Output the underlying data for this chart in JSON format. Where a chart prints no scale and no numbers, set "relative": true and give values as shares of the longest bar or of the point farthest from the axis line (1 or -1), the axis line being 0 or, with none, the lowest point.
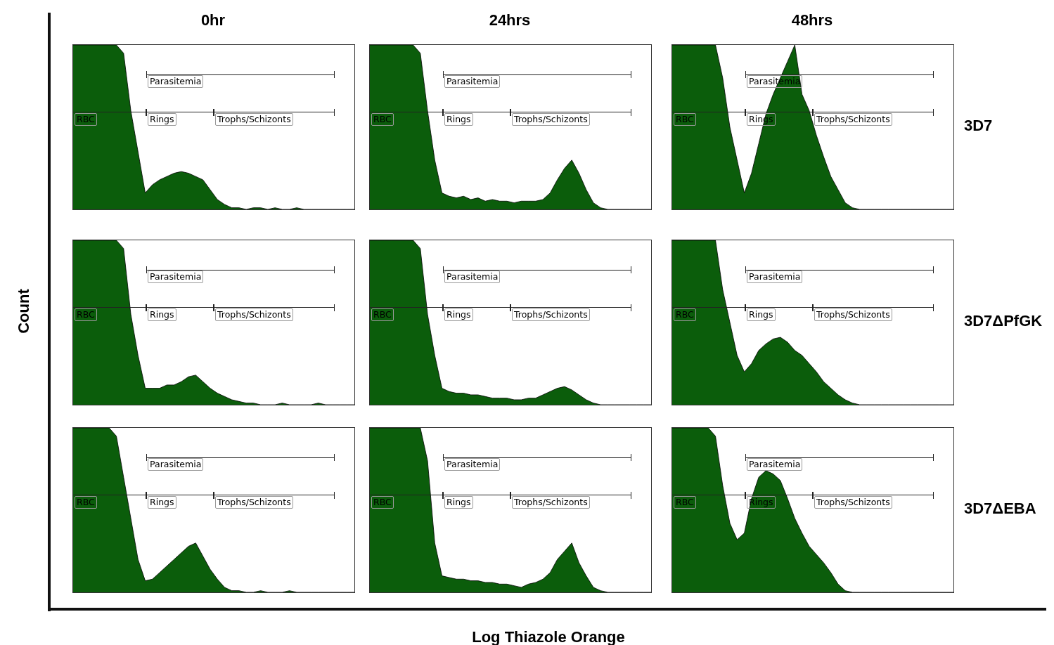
{
  "chart_data": [
    {
      "type": "area",
      "title": "0hr",
      "relative": true,
      "tick_labels": false,
      "annotations": [
        "Parasitemia",
        "RBC",
        "Rings",
        "Trophs/Schizonts"
      ],
      "categories": [
        null,
        null,
        null,
        null,
        null,
        null,
        null,
        null,
        null,
        null,
        null,
        null,
        null,
        null,
        null,
        null,
        null,
        null,
        null,
        null,
        null,
        null,
        null,
        null,
        null,
        null,
        null,
        null,
        null,
        null,
        null,
        null,
        null,
        null,
        null,
        null,
        null,
        null,
        null,
        null
      ],
      "series": [
        {
          "color": "#0b5d0b",
          "values": [
            1,
            1,
            1,
            1,
            1,
            1,
            1,
            0.95,
            0.6,
            0.35,
            0.1,
            0.15,
            0.18,
            0.2,
            0.22,
            0.23,
            0.22,
            0.2,
            0.18,
            0.12,
            0.06,
            0.03,
            0.01,
            0.01,
            0,
            0.01,
            0.01,
            0,
            0.01,
            0,
            0,
            0.01,
            0,
            0,
            0,
            0,
            0,
            0,
            0,
            0
          ]
        }
      ]
    },
    {
      "type": "area",
      "title": "24hrs",
      "relative": true,
      "tick_labels": false,
      "annotations": [
        "Parasitemia",
        "RBC",
        "Rings",
        "Trophs/Schizonts"
      ],
      "categories": [
        null,
        null,
        null,
        null,
        null,
        null,
        null,
        null,
        null,
        null,
        null,
        null,
        null,
        null,
        null,
        null,
        null,
        null,
        null,
        null,
        null,
        null,
        null,
        null,
        null,
        null,
        null,
        null,
        null,
        null,
        null,
        null,
        null,
        null,
        null,
        null,
        null,
        null,
        null,
        null
      ],
      "series": [
        {
          "color": "#0b5d0b",
          "values": [
            1,
            1,
            1,
            1,
            1,
            1,
            1,
            0.95,
            0.6,
            0.3,
            0.1,
            0.08,
            0.07,
            0.08,
            0.06,
            0.07,
            0.05,
            0.06,
            0.05,
            0.05,
            0.04,
            0.05,
            0.05,
            0.05,
            0.06,
            0.1,
            0.18,
            0.25,
            0.3,
            0.22,
            0.12,
            0.04,
            0.01,
            0,
            0,
            0,
            0,
            0,
            0,
            0
          ]
        }
      ]
    },
    {
      "type": "area",
      "title": "48hrs",
      "y2label": "3D7",
      "relative": true,
      "tick_labels": false,
      "annotations": [
        "Parasitemia",
        "RBC",
        "Rings",
        "Trophs/Schizonts"
      ],
      "categories": [
        null,
        null,
        null,
        null,
        null,
        null,
        null,
        null,
        null,
        null,
        null,
        null,
        null,
        null,
        null,
        null,
        null,
        null,
        null,
        null,
        null,
        null,
        null,
        null,
        null,
        null,
        null,
        null,
        null,
        null,
        null,
        null,
        null,
        null,
        null,
        null,
        null,
        null,
        null,
        null
      ],
      "series": [
        {
          "color": "#0b5d0b",
          "values": [
            1,
            1,
            1,
            1,
            1,
            1,
            1,
            0.8,
            0.5,
            0.3,
            0.1,
            0.22,
            0.4,
            0.58,
            0.7,
            0.8,
            0.9,
            1,
            0.7,
            0.6,
            0.45,
            0.32,
            0.2,
            0.12,
            0.04,
            0.01,
            0,
            0,
            0,
            0,
            0,
            0,
            0,
            0,
            0,
            0,
            0,
            0,
            0,
            0
          ]
        }
      ]
    },
    {
      "type": "area",
      "ylabel": "Count",
      "relative": true,
      "tick_labels": false,
      "annotations": [
        "Parasitemia",
        "RBC",
        "Rings",
        "Trophs/Schizonts"
      ],
      "categories": [
        null,
        null,
        null,
        null,
        null,
        null,
        null,
        null,
        null,
        null,
        null,
        null,
        null,
        null,
        null,
        null,
        null,
        null,
        null,
        null,
        null,
        null,
        null,
        null,
        null,
        null,
        null,
        null,
        null,
        null,
        null,
        null,
        null,
        null,
        null,
        null,
        null,
        null,
        null,
        null
      ],
      "series": [
        {
          "color": "#0b5d0b",
          "values": [
            1,
            1,
            1,
            1,
            1,
            1,
            1,
            0.95,
            0.55,
            0.3,
            0.1,
            0.1,
            0.1,
            0.12,
            0.12,
            0.14,
            0.17,
            0.18,
            0.14,
            0.1,
            0.07,
            0.05,
            0.03,
            0.02,
            0.01,
            0.01,
            0,
            0,
            0,
            0.01,
            0,
            0,
            0,
            0,
            0.01,
            0,
            0,
            0,
            0,
            0
          ]
        }
      ]
    },
    {
      "type": "area",
      "relative": true,
      "tick_labels": false,
      "annotations": [
        "Parasitemia",
        "RBC",
        "Rings",
        "Trophs/Schizonts"
      ],
      "categories": [
        null,
        null,
        null,
        null,
        null,
        null,
        null,
        null,
        null,
        null,
        null,
        null,
        null,
        null,
        null,
        null,
        null,
        null,
        null,
        null,
        null,
        null,
        null,
        null,
        null,
        null,
        null,
        null,
        null,
        null,
        null,
        null,
        null,
        null,
        null,
        null,
        null,
        null,
        null,
        null
      ],
      "series": [
        {
          "color": "#0b5d0b",
          "values": [
            1,
            1,
            1,
            1,
            1,
            1,
            1,
            0.95,
            0.55,
            0.3,
            0.1,
            0.08,
            0.07,
            0.07,
            0.06,
            0.06,
            0.05,
            0.04,
            0.04,
            0.04,
            0.03,
            0.03,
            0.04,
            0.04,
            0.06,
            0.08,
            0.1,
            0.11,
            0.09,
            0.06,
            0.03,
            0.01,
            0,
            0,
            0,
            0,
            0,
            0,
            0,
            0
          ]
        }
      ]
    },
    {
      "type": "area",
      "y2label": "3D7ΔPfGK",
      "relative": true,
      "tick_labels": false,
      "annotations": [
        "Parasitemia",
        "RBC",
        "Rings",
        "Trophs/Schizonts"
      ],
      "categories": [
        null,
        null,
        null,
        null,
        null,
        null,
        null,
        null,
        null,
        null,
        null,
        null,
        null,
        null,
        null,
        null,
        null,
        null,
        null,
        null,
        null,
        null,
        null,
        null,
        null,
        null,
        null,
        null,
        null,
        null,
        null,
        null,
        null,
        null,
        null,
        null,
        null,
        null,
        null,
        null
      ],
      "series": [
        {
          "color": "#0b5d0b",
          "values": [
            1,
            1,
            1,
            1,
            1,
            1,
            1,
            0.7,
            0.5,
            0.3,
            0.2,
            0.25,
            0.33,
            0.37,
            0.4,
            0.41,
            0.38,
            0.33,
            0.3,
            0.25,
            0.2,
            0.14,
            0.1,
            0.06,
            0.03,
            0.01,
            0,
            0,
            0,
            0,
            0,
            0,
            0,
            0,
            0,
            0,
            0,
            0,
            0,
            0
          ]
        }
      ]
    },
    {
      "type": "area",
      "relative": true,
      "tick_labels": false,
      "annotations": [
        "Parasitemia",
        "RBC",
        "Rings",
        "Trophs/Schizonts"
      ],
      "categories": [
        null,
        null,
        null,
        null,
        null,
        null,
        null,
        null,
        null,
        null,
        null,
        null,
        null,
        null,
        null,
        null,
        null,
        null,
        null,
        null,
        null,
        null,
        null,
        null,
        null,
        null,
        null,
        null,
        null,
        null,
        null,
        null,
        null,
        null,
        null,
        null,
        null,
        null,
        null,
        null
      ],
      "series": [
        {
          "color": "#0b5d0b",
          "values": [
            1,
            1,
            1,
            1,
            1,
            1,
            0.95,
            0.7,
            0.45,
            0.2,
            0.07,
            0.08,
            0.12,
            0.16,
            0.2,
            0.24,
            0.28,
            0.3,
            0.22,
            0.14,
            0.08,
            0.03,
            0.01,
            0.01,
            0,
            0,
            0.01,
            0,
            0,
            0,
            0.01,
            0,
            0,
            0,
            0,
            0,
            0,
            0,
            0,
            0
          ]
        }
      ]
    },
    {
      "type": "area",
      "xlabel": "Log Thiazole Orange",
      "relative": true,
      "tick_labels": false,
      "annotations": [
        "Parasitemia",
        "RBC",
        "Rings",
        "Trophs/Schizonts"
      ],
      "categories": [
        null,
        null,
        null,
        null,
        null,
        null,
        null,
        null,
        null,
        null,
        null,
        null,
        null,
        null,
        null,
        null,
        null,
        null,
        null,
        null,
        null,
        null,
        null,
        null,
        null,
        null,
        null,
        null,
        null,
        null,
        null,
        null,
        null,
        null,
        null,
        null,
        null,
        null,
        null,
        null
      ],
      "series": [
        {
          "color": "#0b5d0b",
          "values": [
            1,
            1,
            1,
            1,
            1,
            1,
            1,
            1,
            0.8,
            0.3,
            0.1,
            0.09,
            0.08,
            0.08,
            0.07,
            0.07,
            0.06,
            0.06,
            0.05,
            0.05,
            0.04,
            0.03,
            0.05,
            0.06,
            0.08,
            0.12,
            0.2,
            0.25,
            0.3,
            0.18,
            0.1,
            0.03,
            0.01,
            0,
            0,
            0,
            0,
            0,
            0,
            0
          ]
        }
      ]
    },
    {
      "type": "area",
      "y2label": "3D7ΔEBA",
      "relative": true,
      "tick_labels": false,
      "annotations": [
        "Parasitemia",
        "RBC",
        "Rings",
        "Trophs/Schizonts"
      ],
      "categories": [
        null,
        null,
        null,
        null,
        null,
        null,
        null,
        null,
        null,
        null,
        null,
        null,
        null,
        null,
        null,
        null,
        null,
        null,
        null,
        null,
        null,
        null,
        null,
        null,
        null,
        null,
        null,
        null,
        null,
        null,
        null,
        null,
        null,
        null,
        null,
        null,
        null,
        null,
        null,
        null
      ],
      "series": [
        {
          "color": "#0b5d0b",
          "values": [
            1,
            1,
            1,
            1,
            1,
            1,
            0.95,
            0.65,
            0.42,
            0.32,
            0.36,
            0.57,
            0.7,
            0.74,
            0.72,
            0.68,
            0.57,
            0.45,
            0.36,
            0.28,
            0.23,
            0.18,
            0.12,
            0.05,
            0.01,
            0,
            0,
            0,
            0,
            0,
            0,
            0,
            0,
            0,
            0,
            0,
            0,
            0,
            0,
            0
          ]
        }
      ]
    }
  ]
}
